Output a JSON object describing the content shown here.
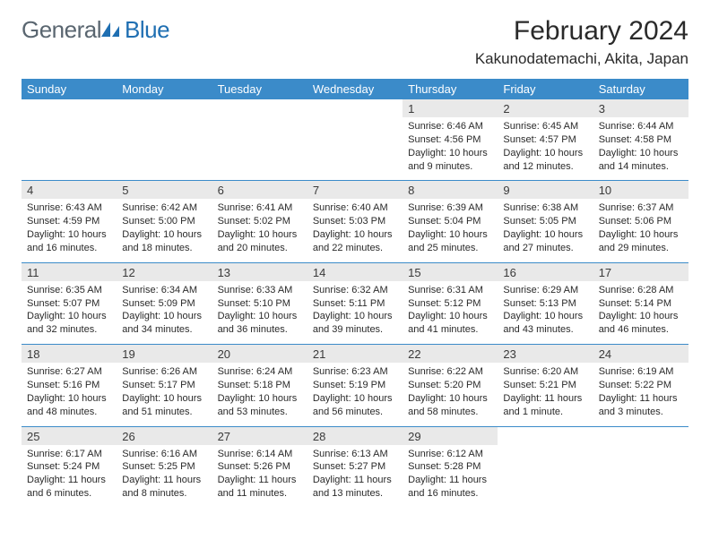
{
  "brand": {
    "text1": "General",
    "text2": "Blue"
  },
  "title": "February 2024",
  "location": "Kakunodatemachi, Akita, Japan",
  "colors": {
    "header_bg": "#3b8bc9",
    "header_text": "#ffffff",
    "daynum_bg": "#e9e9e9",
    "rule": "#3b8bc9",
    "brand_gray": "#5a6670",
    "brand_blue": "#1f6fb2"
  },
  "dow": [
    "Sunday",
    "Monday",
    "Tuesday",
    "Wednesday",
    "Thursday",
    "Friday",
    "Saturday"
  ],
  "weeks": [
    [
      null,
      null,
      null,
      null,
      {
        "n": "1",
        "sr": "6:46 AM",
        "ss": "4:56 PM",
        "dl": "10 hours and 9 minutes."
      },
      {
        "n": "2",
        "sr": "6:45 AM",
        "ss": "4:57 PM",
        "dl": "10 hours and 12 minutes."
      },
      {
        "n": "3",
        "sr": "6:44 AM",
        "ss": "4:58 PM",
        "dl": "10 hours and 14 minutes."
      }
    ],
    [
      {
        "n": "4",
        "sr": "6:43 AM",
        "ss": "4:59 PM",
        "dl": "10 hours and 16 minutes."
      },
      {
        "n": "5",
        "sr": "6:42 AM",
        "ss": "5:00 PM",
        "dl": "10 hours and 18 minutes."
      },
      {
        "n": "6",
        "sr": "6:41 AM",
        "ss": "5:02 PM",
        "dl": "10 hours and 20 minutes."
      },
      {
        "n": "7",
        "sr": "6:40 AM",
        "ss": "5:03 PM",
        "dl": "10 hours and 22 minutes."
      },
      {
        "n": "8",
        "sr": "6:39 AM",
        "ss": "5:04 PM",
        "dl": "10 hours and 25 minutes."
      },
      {
        "n": "9",
        "sr": "6:38 AM",
        "ss": "5:05 PM",
        "dl": "10 hours and 27 minutes."
      },
      {
        "n": "10",
        "sr": "6:37 AM",
        "ss": "5:06 PM",
        "dl": "10 hours and 29 minutes."
      }
    ],
    [
      {
        "n": "11",
        "sr": "6:35 AM",
        "ss": "5:07 PM",
        "dl": "10 hours and 32 minutes."
      },
      {
        "n": "12",
        "sr": "6:34 AM",
        "ss": "5:09 PM",
        "dl": "10 hours and 34 minutes."
      },
      {
        "n": "13",
        "sr": "6:33 AM",
        "ss": "5:10 PM",
        "dl": "10 hours and 36 minutes."
      },
      {
        "n": "14",
        "sr": "6:32 AM",
        "ss": "5:11 PM",
        "dl": "10 hours and 39 minutes."
      },
      {
        "n": "15",
        "sr": "6:31 AM",
        "ss": "5:12 PM",
        "dl": "10 hours and 41 minutes."
      },
      {
        "n": "16",
        "sr": "6:29 AM",
        "ss": "5:13 PM",
        "dl": "10 hours and 43 minutes."
      },
      {
        "n": "17",
        "sr": "6:28 AM",
        "ss": "5:14 PM",
        "dl": "10 hours and 46 minutes."
      }
    ],
    [
      {
        "n": "18",
        "sr": "6:27 AM",
        "ss": "5:16 PM",
        "dl": "10 hours and 48 minutes."
      },
      {
        "n": "19",
        "sr": "6:26 AM",
        "ss": "5:17 PM",
        "dl": "10 hours and 51 minutes."
      },
      {
        "n": "20",
        "sr": "6:24 AM",
        "ss": "5:18 PM",
        "dl": "10 hours and 53 minutes."
      },
      {
        "n": "21",
        "sr": "6:23 AM",
        "ss": "5:19 PM",
        "dl": "10 hours and 56 minutes."
      },
      {
        "n": "22",
        "sr": "6:22 AM",
        "ss": "5:20 PM",
        "dl": "10 hours and 58 minutes."
      },
      {
        "n": "23",
        "sr": "6:20 AM",
        "ss": "5:21 PM",
        "dl": "11 hours and 1 minute."
      },
      {
        "n": "24",
        "sr": "6:19 AM",
        "ss": "5:22 PM",
        "dl": "11 hours and 3 minutes."
      }
    ],
    [
      {
        "n": "25",
        "sr": "6:17 AM",
        "ss": "5:24 PM",
        "dl": "11 hours and 6 minutes."
      },
      {
        "n": "26",
        "sr": "6:16 AM",
        "ss": "5:25 PM",
        "dl": "11 hours and 8 minutes."
      },
      {
        "n": "27",
        "sr": "6:14 AM",
        "ss": "5:26 PM",
        "dl": "11 hours and 11 minutes."
      },
      {
        "n": "28",
        "sr": "6:13 AM",
        "ss": "5:27 PM",
        "dl": "11 hours and 13 minutes."
      },
      {
        "n": "29",
        "sr": "6:12 AM",
        "ss": "5:28 PM",
        "dl": "11 hours and 16 minutes."
      },
      null,
      null
    ]
  ],
  "labels": {
    "sunrise": "Sunrise:",
    "sunset": "Sunset:",
    "daylight": "Daylight:"
  }
}
